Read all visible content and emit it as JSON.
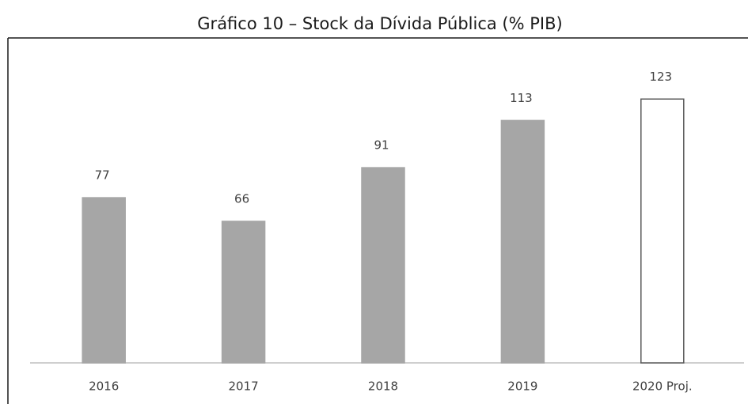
{
  "chart_data": {
    "type": "bar",
    "title": "Gráfico 10 – Stock da Dívida Pública (% PIB)",
    "categories": [
      "2016",
      "2017",
      "2018",
      "2019",
      "2020 Proj."
    ],
    "values": [
      77,
      66,
      91,
      113,
      123
    ],
    "colors": [
      "#a6a6a6",
      "#a6a6a6",
      "#a6a6a6",
      "#a6a6a6",
      "#ffffff"
    ],
    "edgecolors": [
      "#a6a6a6",
      "#a6a6a6",
      "#a6a6a6",
      "#a6a6a6",
      "#595959"
    ],
    "ylim": [
      0,
      150
    ],
    "grid": false
  }
}
